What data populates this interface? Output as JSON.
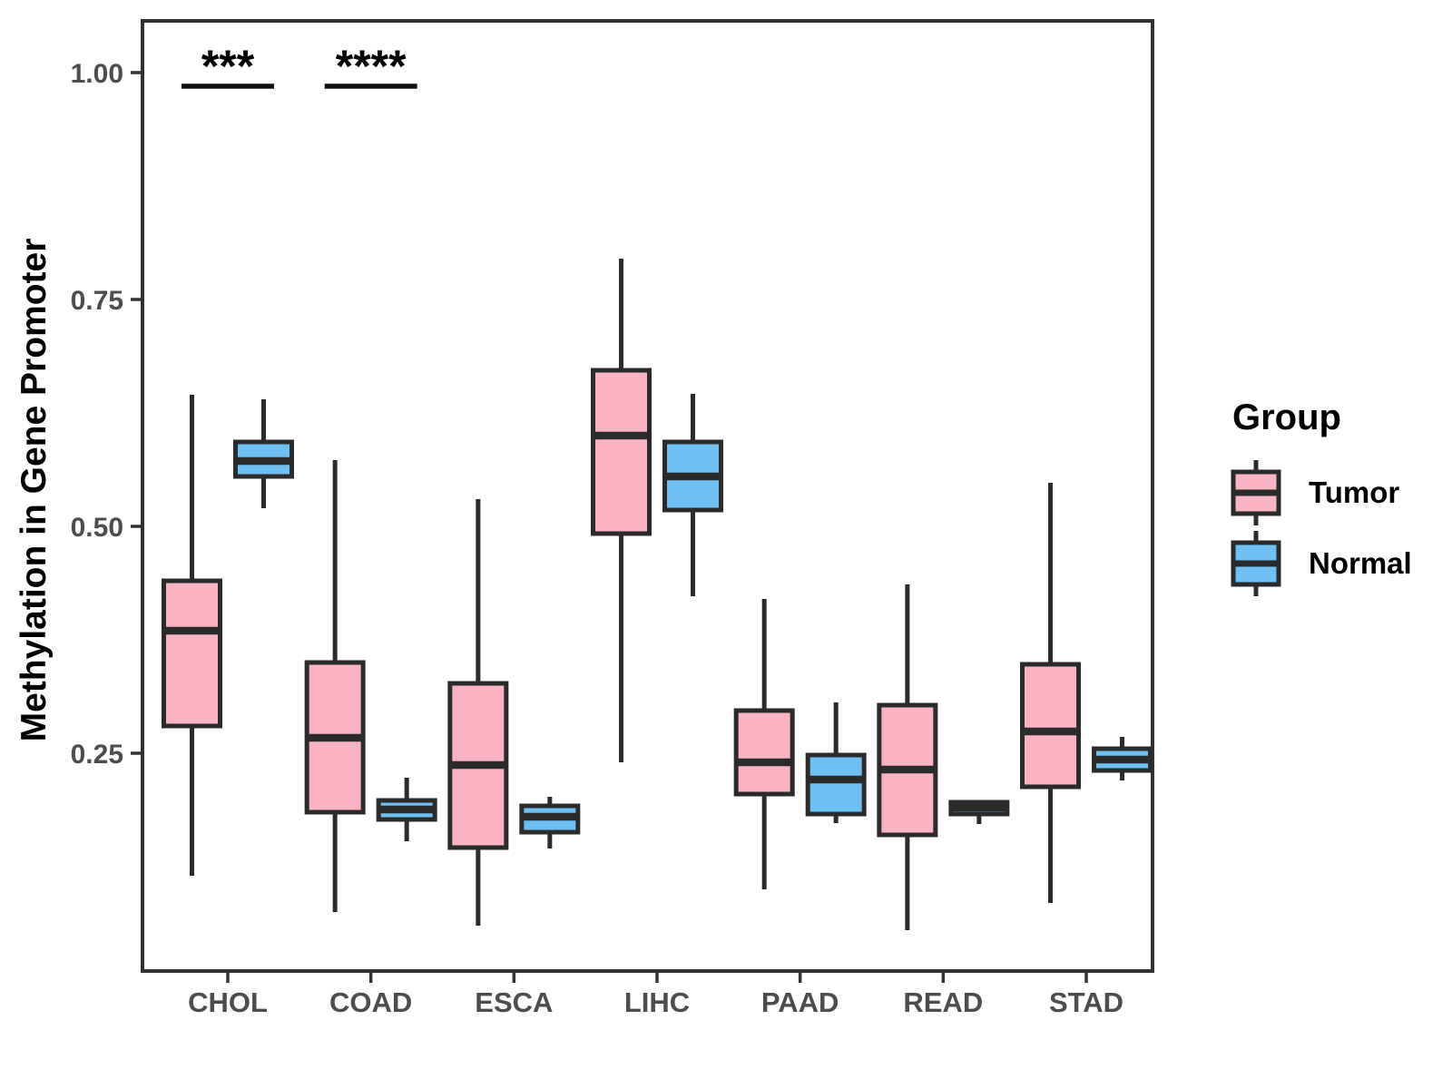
{
  "chart_data": {
    "type": "boxplot",
    "title": "",
    "xlabel": "",
    "ylabel": "Methylation in Gene Promoter",
    "legend_title": "Group",
    "legend_position": "right",
    "grid": false,
    "categories": [
      "CHOL",
      "COAD",
      "ESCA",
      "LIHC",
      "PAAD",
      "READ",
      "STAD"
    ],
    "y_ticks": [
      {
        "value": 1.0,
        "label": "1.00"
      },
      {
        "value": 0.75,
        "label": "0.75"
      },
      {
        "value": 0.5,
        "label": "0.50"
      },
      {
        "value": 0.25,
        "label": "0.25"
      }
    ],
    "ylim": [
      0.01,
      1.057
    ],
    "groups": [
      {
        "name": "Tumor",
        "fill": "#F9B3C2"
      },
      {
        "name": "Normal",
        "fill": "#6EC0F3"
      }
    ],
    "series": {
      "Tumor": [
        {
          "category": "CHOL",
          "min": 0.115,
          "q1": 0.28,
          "median": 0.385,
          "q3": 0.44,
          "max": 0.645
        },
        {
          "category": "COAD",
          "min": 0.075,
          "q1": 0.185,
          "median": 0.267,
          "q3": 0.35,
          "max": 0.573
        },
        {
          "category": "ESCA",
          "min": 0.06,
          "q1": 0.146,
          "median": 0.237,
          "q3": 0.327,
          "max": 0.53
        },
        {
          "category": "LIHC",
          "min": 0.24,
          "q1": 0.492,
          "median": 0.6,
          "q3": 0.672,
          "max": 0.795
        },
        {
          "category": "PAAD",
          "min": 0.1,
          "q1": 0.205,
          "median": 0.24,
          "q3": 0.297,
          "max": 0.42
        },
        {
          "category": "READ",
          "min": 0.055,
          "q1": 0.16,
          "median": 0.232,
          "q3": 0.303,
          "max": 0.436
        },
        {
          "category": "STAD",
          "min": 0.085,
          "q1": 0.213,
          "median": 0.274,
          "q3": 0.348,
          "max": 0.548
        }
      ],
      "Normal": [
        {
          "category": "CHOL",
          "min": 0.52,
          "q1": 0.555,
          "median": 0.572,
          "q3": 0.593,
          "max": 0.64
        },
        {
          "category": "COAD",
          "min": 0.153,
          "q1": 0.177,
          "median": 0.188,
          "q3": 0.198,
          "max": 0.223
        },
        {
          "category": "ESCA",
          "min": 0.145,
          "q1": 0.163,
          "median": 0.18,
          "q3": 0.192,
          "max": 0.202
        },
        {
          "category": "LIHC",
          "min": 0.423,
          "q1": 0.518,
          "median": 0.555,
          "q3": 0.593,
          "max": 0.646
        },
        {
          "category": "PAAD",
          "min": 0.173,
          "q1": 0.183,
          "median": 0.221,
          "q3": 0.248,
          "max": 0.306
        },
        {
          "category": "READ",
          "min": 0.172,
          "q1": 0.183,
          "median": 0.19,
          "q3": 0.196,
          "max": 0.198
        },
        {
          "category": "STAD",
          "min": 0.22,
          "q1": 0.231,
          "median": 0.243,
          "q3": 0.255,
          "max": 0.268
        }
      ]
    },
    "annotations": [
      {
        "category": "CHOL",
        "label": "***"
      },
      {
        "category": "COAD",
        "label": "****"
      }
    ],
    "colors": {
      "box_stroke": "#2B2B2B",
      "panel_border": "#333333",
      "tick_label": "#4D4D4D",
      "annotation": "#111111",
      "text": "#000000"
    }
  }
}
